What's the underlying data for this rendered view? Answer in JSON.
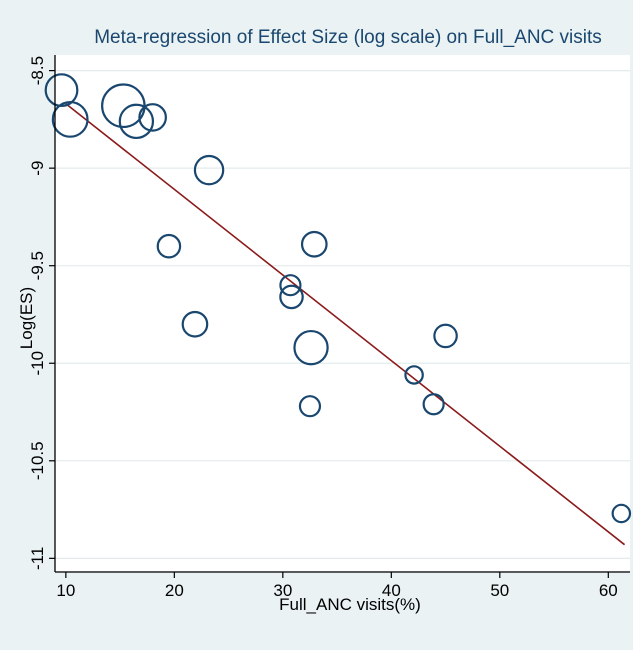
{
  "chart_data": {
    "type": "scatter",
    "title": "Meta-regression of Effect Size (log scale) on Full_ANC visits",
    "xlabel": "Full_ANC visits(%)",
    "ylabel": "Log(ES)",
    "xlim": [
      9,
      62
    ],
    "ylim": [
      -11.07,
      -8.42
    ],
    "xticks": [
      10,
      20,
      30,
      40,
      50,
      60
    ],
    "yticks": [
      -8.5,
      -9,
      -9.5,
      -10,
      -10.5,
      -11
    ],
    "xtick_labels": [
      "10",
      "20",
      "30",
      "40",
      "50",
      "60"
    ],
    "ytick_labels": [
      "-8.5",
      "-9",
      "-9.5",
      "-10",
      "-10.5",
      "-11"
    ],
    "grid": "horizontal",
    "legend": "none",
    "points": [
      {
        "x": 9.6,
        "y": -8.6,
        "weight": 10
      },
      {
        "x": 10.4,
        "y": -8.75,
        "weight": 12
      },
      {
        "x": 15.3,
        "y": -8.68,
        "weight": 18
      },
      {
        "x": 16.5,
        "y": -8.76,
        "weight": 11
      },
      {
        "x": 18.0,
        "y": -8.74,
        "weight": 7
      },
      {
        "x": 23.2,
        "y": -9.01,
        "weight": 8
      },
      {
        "x": 19.5,
        "y": -9.4,
        "weight": 5
      },
      {
        "x": 21.9,
        "y": -9.8,
        "weight": 6
      },
      {
        "x": 30.7,
        "y": -9.6,
        "weight": 4
      },
      {
        "x": 30.8,
        "y": -9.66,
        "weight": 5
      },
      {
        "x": 32.9,
        "y": -9.39,
        "weight": 6
      },
      {
        "x": 32.6,
        "y": -9.92,
        "weight": 11
      },
      {
        "x": 32.5,
        "y": -10.22,
        "weight": 4
      },
      {
        "x": 42.1,
        "y": -10.06,
        "weight": 3
      },
      {
        "x": 43.9,
        "y": -10.21,
        "weight": 4
      },
      {
        "x": 45.0,
        "y": -9.86,
        "weight": 5
      },
      {
        "x": 61.2,
        "y": -10.77,
        "weight": 3
      }
    ],
    "fit_line": {
      "x": [
        10,
        61.5
      ],
      "y": [
        -8.67,
        -10.93
      ]
    },
    "colors": {
      "background": "#eaf2f3",
      "plot_background": "#ffffff",
      "marker": "#1a476f",
      "fit": "#8b1a1a",
      "grid": "#e3ebee",
      "axis": "#000000",
      "title": "#1a476f"
    }
  }
}
